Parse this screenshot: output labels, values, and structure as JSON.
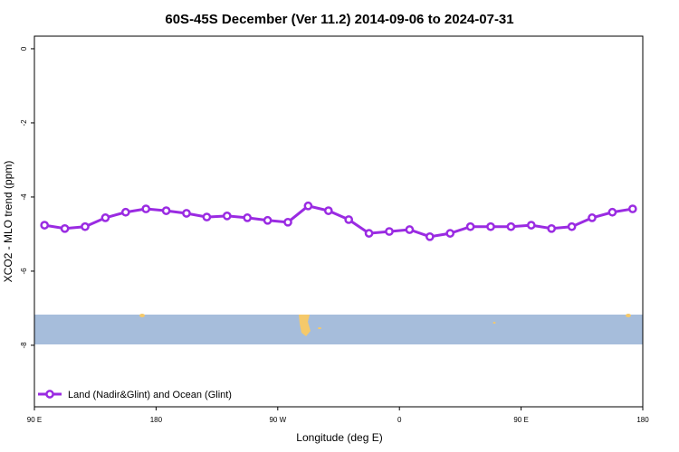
{
  "chart_data": {
    "type": "line",
    "title": "60S-45S December (Ver 11.2)   2014-09-06 to 2024-07-31",
    "x_label": "Longitude (deg E)",
    "y_label": "XCO2 - MLO trend (ppm)",
    "x": [
      97.5,
      112.5,
      127.5,
      142.5,
      157.5,
      172.5,
      187.5,
      202.5,
      217.5,
      232.5,
      247.5,
      262.5,
      277.5,
      292.5,
      307.5,
      322.5,
      337.5,
      352.5,
      367.5,
      382.5,
      397.5,
      412.5,
      427.5,
      442.5,
      457.5,
      472.5,
      487.5,
      502.5,
      517.5,
      532.5
    ],
    "series": [
      {
        "name": "Land (Nadir&Glint) and Ocean (Glint)",
        "color": "#9a2be2",
        "values": [
          -4.76,
          -4.85,
          -4.8,
          -4.56,
          -4.41,
          -4.32,
          -4.37,
          -4.44,
          -4.54,
          -4.51,
          -4.56,
          -4.63,
          -4.68,
          -4.24,
          -4.37,
          -4.61,
          -4.98,
          -4.93,
          -4.88,
          -5.07,
          -4.98,
          -4.8,
          -4.8,
          -4.8,
          -4.76,
          -4.85,
          -4.8,
          -4.56,
          -4.41,
          -4.32
        ]
      }
    ],
    "xlim": [
      90,
      540
    ],
    "xticks": [
      {
        "value": 90,
        "label": "90 E"
      },
      180,
      {
        "value": 270,
        "label": "90 W"
      },
      {
        "value": 360,
        "label": "0"
      },
      {
        "value": 450,
        "label": "90 E"
      },
      {
        "value": 540,
        "label": "180"
      }
    ],
    "ylim": [
      -9.66,
      0.34
    ],
    "yticks": [
      0,
      -2,
      -4,
      -6,
      -8
    ],
    "legend": "bottom-left"
  }
}
